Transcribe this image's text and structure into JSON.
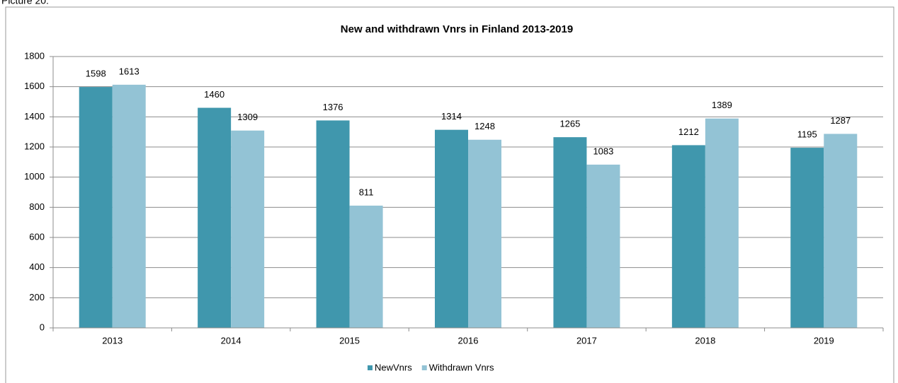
{
  "caption": "Picture 20:",
  "chart_data": {
    "type": "bar",
    "title": "New and withdrawn Vnrs in Finland 2013-2019",
    "categories": [
      "2013",
      "2014",
      "2015",
      "2016",
      "2017",
      "2018",
      "2019"
    ],
    "series": [
      {
        "name": "NewVnrs",
        "color": "#4097ad",
        "values": [
          1598,
          1460,
          1376,
          1314,
          1265,
          1212,
          1195
        ]
      },
      {
        "name": "Withdrawn Vnrs",
        "color": "#93c3d5",
        "values": [
          1613,
          1309,
          811,
          1248,
          1083,
          1389,
          1287
        ]
      }
    ],
    "ylim": [
      0,
      1800
    ],
    "yticks": [
      0,
      200,
      400,
      600,
      800,
      1000,
      1200,
      1400,
      1600,
      1800
    ],
    "grid": true,
    "legend": "bottom"
  }
}
